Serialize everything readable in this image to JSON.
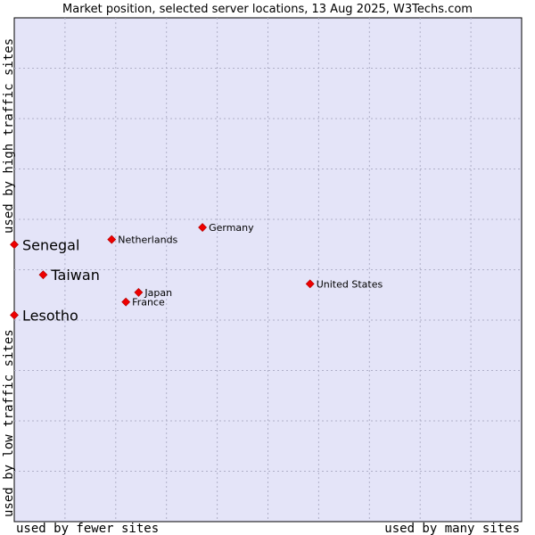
{
  "chart_data": {
    "type": "scatter",
    "title": "Market position, selected server locations, 13 Aug 2025, W3Techs.com",
    "xlabel_low": "used by fewer sites",
    "xlabel_high": "used by many sites",
    "ylabel_low": "used by low traffic sites",
    "ylabel_high": "used by high traffic sites",
    "xlim": [
      0,
      10
    ],
    "ylim": [
      0,
      10
    ],
    "grid": true,
    "colors": {
      "background": "#e4e4f8",
      "grid": "#b0b0c8",
      "marker": "#ee0000",
      "marker_edge": "#aa0000",
      "axis": "#000000"
    },
    "points": [
      {
        "label": "Senegal",
        "x": 0.0,
        "y": 5.5,
        "emphasis": true
      },
      {
        "label": "Taiwan",
        "x": 0.57,
        "y": 4.9,
        "emphasis": true
      },
      {
        "label": "Lesotho",
        "x": 0.0,
        "y": 4.1,
        "emphasis": true
      },
      {
        "label": "Netherlands",
        "x": 1.92,
        "y": 5.6,
        "emphasis": false
      },
      {
        "label": "Germany",
        "x": 3.71,
        "y": 5.84,
        "emphasis": false
      },
      {
        "label": "Japan",
        "x": 2.45,
        "y": 4.55,
        "emphasis": false
      },
      {
        "label": "France",
        "x": 2.2,
        "y": 4.36,
        "emphasis": false
      },
      {
        "label": "United States",
        "x": 5.83,
        "y": 4.72,
        "emphasis": false
      }
    ]
  }
}
